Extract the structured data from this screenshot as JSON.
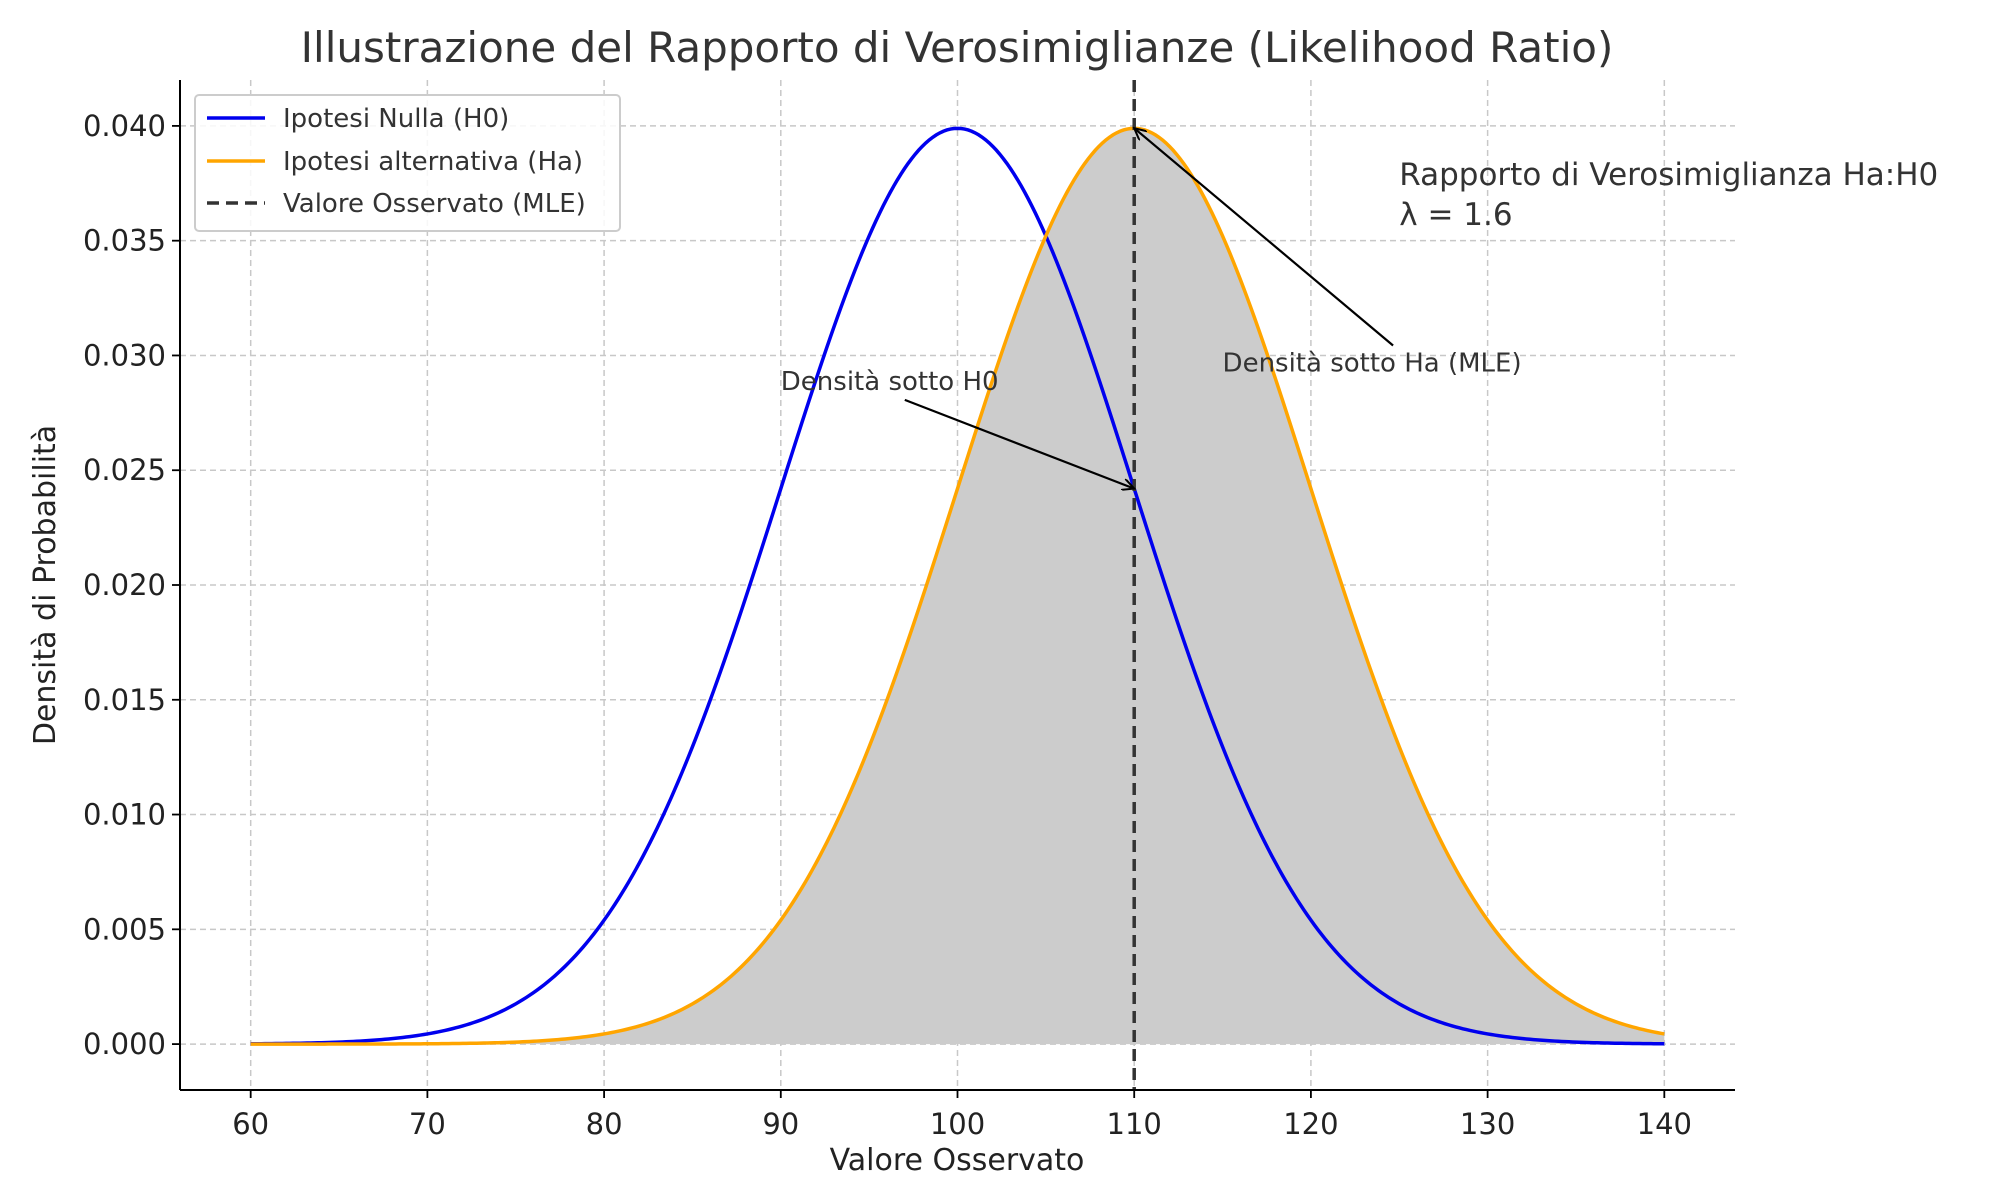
{
  "chart_data": {
    "type": "line",
    "title": "Illustrazione del Rapporto di Verosimiglianze (Likelihood Ratio)",
    "xlabel": "Valore Osservato",
    "ylabel": "Densità di Probabilità",
    "xlim": [
      56,
      144
    ],
    "ylim": [
      -0.002,
      0.042
    ],
    "xticks": [
      60,
      70,
      80,
      90,
      100,
      110,
      120,
      130,
      140
    ],
    "xtick_labels": [
      "60",
      "70",
      "80",
      "90",
      "100",
      "110",
      "120",
      "130",
      "140"
    ],
    "yticks": [
      0.0,
      0.005,
      0.01,
      0.015,
      0.02,
      0.025,
      0.03,
      0.035,
      0.04
    ],
    "ytick_labels": [
      "0.000",
      "0.005",
      "0.010",
      "0.015",
      "0.020",
      "0.025",
      "0.030",
      "0.035",
      "0.040"
    ],
    "grid": true,
    "legend_position": "top-left",
    "series": [
      {
        "name": "Ipotesi Nulla (H0)",
        "color": "#0000ee",
        "distribution": "normal",
        "mean": 100,
        "sd": 10,
        "x_range": [
          60,
          140
        ]
      },
      {
        "name": "Ipotesi alternativa (Ha)",
        "color": "#ffa500",
        "distribution": "normal",
        "mean": 110,
        "sd": 10,
        "x_range": [
          60,
          140
        ],
        "fill": "#cccccc"
      }
    ],
    "vline": {
      "name": "Valore Osservato (MLE)",
      "x": 110,
      "color": "#333333",
      "style": "dashed"
    },
    "annotations": [
      {
        "text": "Densità sotto H0",
        "text_x": 90,
        "text_y": 0.0285,
        "point_x": 110,
        "point_y": 0.0242
      },
      {
        "text": "Densità sotto Ha (MLE)",
        "text_x": 115,
        "text_y": 0.0293,
        "point_x": 110,
        "point_y": 0.0399
      }
    ],
    "ratio_text": {
      "line1": "Rapporto di Verosimiglianza Ha:H0",
      "line2": "λ = 1.6",
      "x": 125,
      "y": 0.037
    }
  }
}
